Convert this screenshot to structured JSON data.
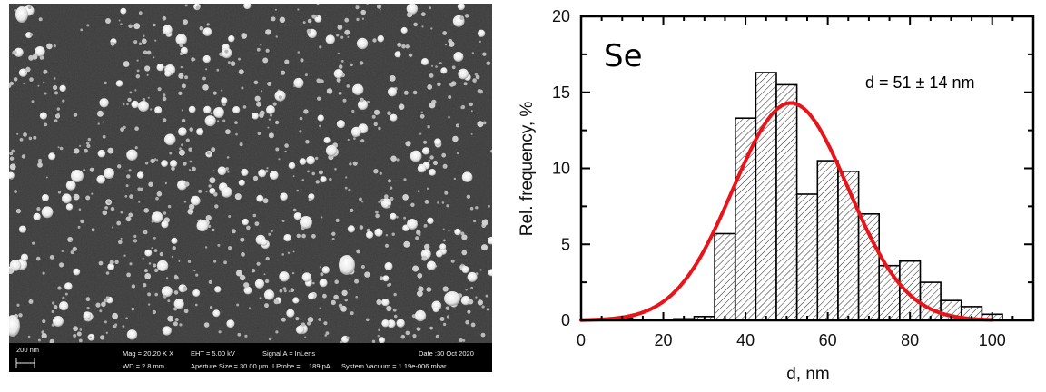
{
  "sem_image": {
    "scale_bar_label": "200 nm",
    "info": {
      "mag": "Mag = 20.20 K X",
      "eht": "EHT = 5.00 kV",
      "signal": "Signal A = InLens",
      "date": "Date :30 Oct 2020",
      "wd": "WD = 2.8 mm",
      "aperture": "Aperture Size = 30.00 µm",
      "iprobe_label": "I Probe =",
      "iprobe_value": "189 pA",
      "vacuum": "System Vacuum = 1.19e-006 mbar"
    },
    "background_color": "#3a3a3a",
    "info_bar_color": "#000000"
  },
  "chart_data": {
    "type": "bar",
    "panel_label": "Se",
    "annotation": "d = 51 ± 14 nm",
    "xlabel": "d, nm",
    "ylabel": "Rel. frequency, %",
    "xlim": [
      0,
      110
    ],
    "ylim": [
      0,
      20
    ],
    "xticks": [
      "0",
      "20",
      "40",
      "60",
      "80",
      "100"
    ],
    "xtick_values": [
      0,
      20,
      40,
      60,
      80,
      100
    ],
    "yticks": [
      "0",
      "5",
      "10",
      "15",
      "20"
    ],
    "ytick_values": [
      0,
      5,
      10,
      15,
      20
    ],
    "bin_width": 5,
    "bins": [
      {
        "center": 10,
        "value": 0.15
      },
      {
        "center": 25,
        "value": 0.1
      },
      {
        "center": 30,
        "value": 0.25
      },
      {
        "center": 35,
        "value": 5.7
      },
      {
        "center": 40,
        "value": 13.3
      },
      {
        "center": 45,
        "value": 16.3
      },
      {
        "center": 50,
        "value": 15.5
      },
      {
        "center": 55,
        "value": 8.3
      },
      {
        "center": 60,
        "value": 10.5
      },
      {
        "center": 65,
        "value": 9.8
      },
      {
        "center": 70,
        "value": 7.0
      },
      {
        "center": 75,
        "value": 3.6
      },
      {
        "center": 80,
        "value": 3.9
      },
      {
        "center": 85,
        "value": 2.5
      },
      {
        "center": 90,
        "value": 1.3
      },
      {
        "center": 95,
        "value": 0.9
      },
      {
        "center": 100,
        "value": 0.4
      }
    ],
    "fit": {
      "type": "gaussian",
      "mean": 51,
      "sigma": 14,
      "peak": 14.3,
      "x_range": [
        0,
        100
      ],
      "color": "#e8141a"
    },
    "bar_fill": "hatched",
    "grid": false
  }
}
